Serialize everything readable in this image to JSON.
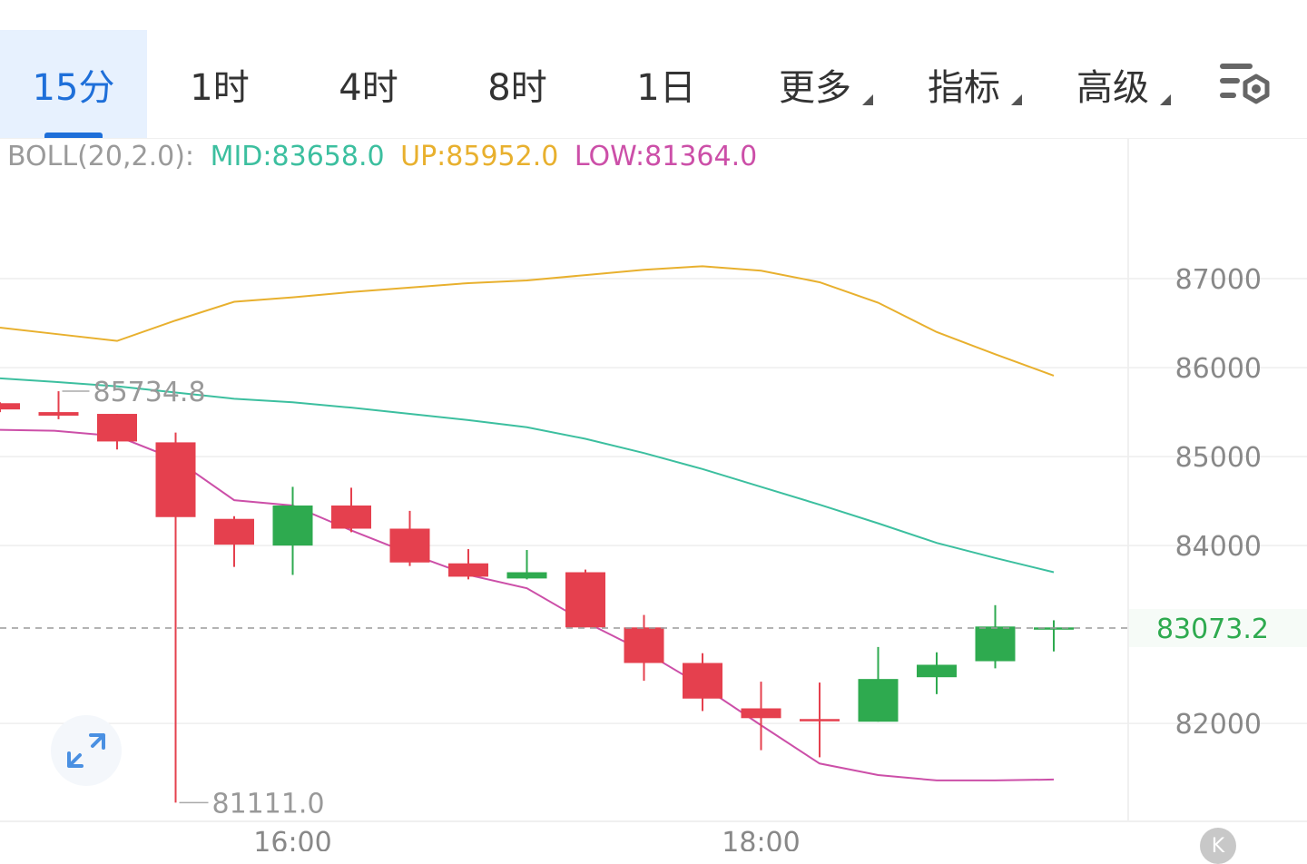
{
  "tabs": [
    {
      "label": "15分",
      "active": true,
      "dropdown": false
    },
    {
      "label": "1时",
      "active": false,
      "dropdown": false
    },
    {
      "label": "4时",
      "active": false,
      "dropdown": false
    },
    {
      "label": "8时",
      "active": false,
      "dropdown": false
    },
    {
      "label": "1日",
      "active": false,
      "dropdown": false
    },
    {
      "label": "更多",
      "active": false,
      "dropdown": true
    },
    {
      "label": "指标",
      "active": false,
      "dropdown": true
    },
    {
      "label": "高级",
      "active": false,
      "dropdown": true
    }
  ],
  "settings_icon": "chart-settings-icon",
  "boll": {
    "name": "BOLL(20,2.0):",
    "mid": "MID:83658.0",
    "up": "UP:85952.0",
    "low": "LOW:81364.0",
    "colors": {
      "name": "#9a9a9a",
      "mid": "#3cbf9f",
      "up": "#e8b02e",
      "low": "#cc4fa8"
    }
  },
  "expand_icon": "expand-arrows-icon",
  "badge_label": "K",
  "chart_data": {
    "type": "candlestick",
    "interval": "15分",
    "x_ticks": [
      "16:00",
      "18:00"
    ],
    "y_ticks": [
      "87000",
      "86000",
      "85000",
      "84000",
      "82000"
    ],
    "ylim": [
      80900,
      88500
    ],
    "last_price": "83073.2",
    "last_price_value": 83073.2,
    "max_label": "85734.8",
    "max_value": 85734.8,
    "min_label": "81111.0",
    "min_value": 81111.0,
    "colors": {
      "up": "#2eaa4f",
      "down": "#e5404e",
      "grid": "#eeeeee",
      "axis_text": "#888888",
      "price_text": "#2eaa4f"
    },
    "candles": [
      {
        "open": 85600,
        "high": 85610,
        "low": 85500,
        "close": 85530
      },
      {
        "open": 85500,
        "high": 85734.8,
        "low": 85420,
        "close": 85460
      },
      {
        "open": 85480,
        "high": 85480,
        "low": 85080,
        "close": 85170
      },
      {
        "open": 85160,
        "high": 85270,
        "low": 81111.0,
        "close": 84320
      },
      {
        "open": 84300,
        "high": 84330,
        "low": 83760,
        "close": 84010
      },
      {
        "open": 84000,
        "high": 84660,
        "low": 83670,
        "close": 84450
      },
      {
        "open": 84450,
        "high": 84650,
        "low": 84150,
        "close": 84190
      },
      {
        "open": 84190,
        "high": 84390,
        "low": 83770,
        "close": 83810
      },
      {
        "open": 83800,
        "high": 83960,
        "low": 83620,
        "close": 83650
      },
      {
        "open": 83630,
        "high": 83950,
        "low": 83620,
        "close": 83700
      },
      {
        "open": 83700,
        "high": 83730,
        "low": 83080,
        "close": 83080
      },
      {
        "open": 83080,
        "high": 83220,
        "low": 82480,
        "close": 82680
      },
      {
        "open": 82680,
        "high": 82790,
        "low": 82140,
        "close": 82280
      },
      {
        "open": 82170,
        "high": 82470,
        "low": 81700,
        "close": 82060
      },
      {
        "open": 82050,
        "high": 82460,
        "low": 81620,
        "close": 82040
      },
      {
        "open": 82020,
        "high": 82860,
        "low": 82020,
        "close": 82500
      },
      {
        "open": 82520,
        "high": 82800,
        "low": 82330,
        "close": 82660
      },
      {
        "open": 82700,
        "high": 83330,
        "low": 82620,
        "close": 83090
      },
      {
        "open": 83070,
        "high": 83160,
        "low": 82810,
        "close": 83080
      }
    ],
    "boll_up": [
      86450,
      86380,
      86300,
      86530,
      86740,
      86790,
      86850,
      86900,
      86950,
      86980,
      87040,
      87100,
      87140,
      87090,
      86960,
      86730,
      86400,
      86150,
      85910
    ],
    "boll_mid": [
      85880,
      85840,
      85790,
      85720,
      85650,
      85610,
      85550,
      85480,
      85410,
      85330,
      85200,
      85040,
      84860,
      84660,
      84460,
      84250,
      84030,
      83860,
      83700
    ],
    "boll_low": [
      85300,
      85290,
      85230,
      84970,
      84510,
      84450,
      84170,
      83910,
      83670,
      83520,
      83140,
      82810,
      82420,
      81980,
      81550,
      81420,
      81360,
      81360,
      81370
    ]
  }
}
